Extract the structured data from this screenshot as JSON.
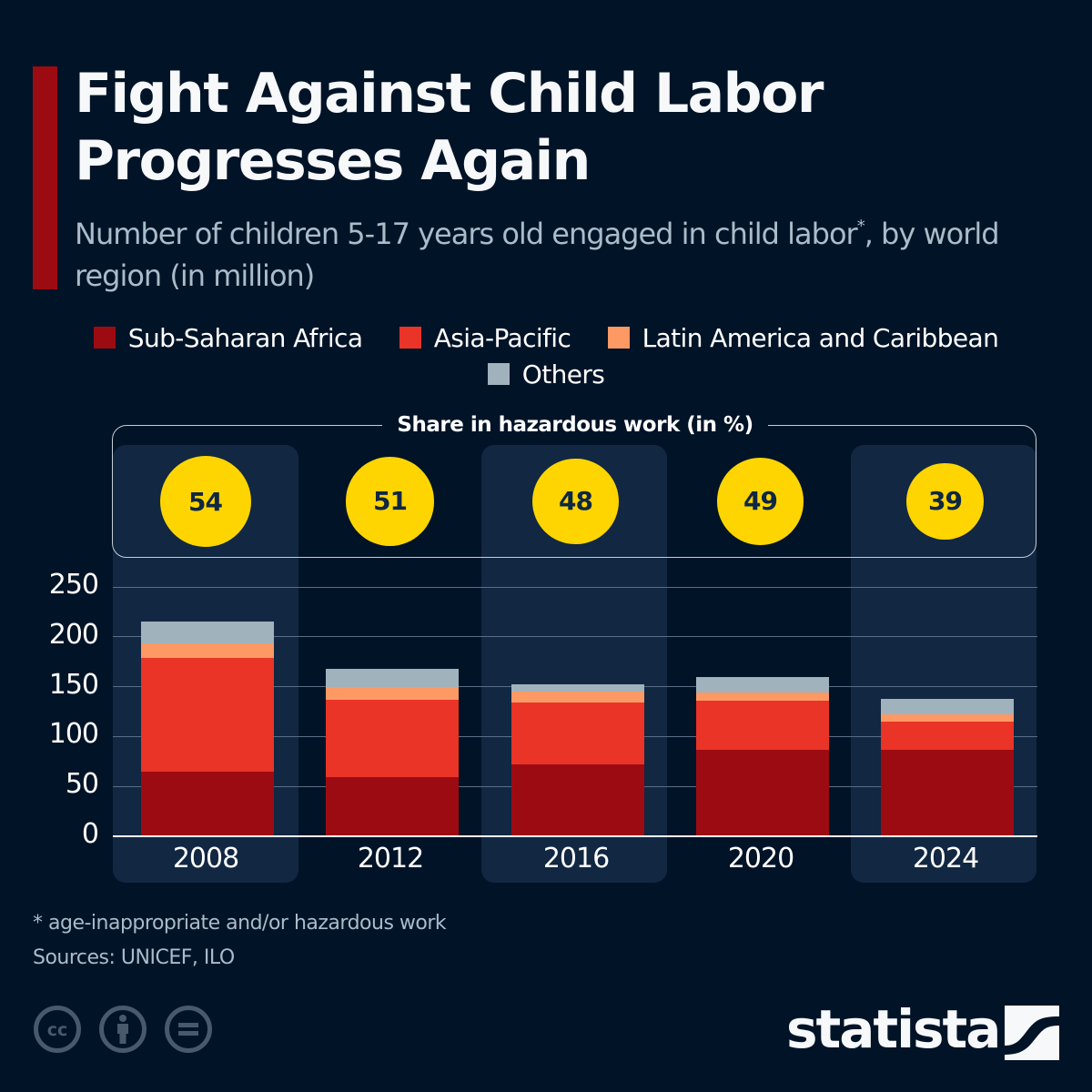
{
  "header": {
    "title": "Fight Against Child Labor Progresses Again",
    "subtitle_main": "Number of children 5-17 years old engaged in child labor",
    "subtitle_sup": "*",
    "subtitle_tail": ", by world region (in million)"
  },
  "colors": {
    "background": "#011327",
    "accent": "#9d0b12",
    "circle": "#fed500",
    "column_highlight": "#112742"
  },
  "legend": [
    {
      "label": "Sub-Saharan Africa",
      "color": "#9d0b12"
    },
    {
      "label": "Asia-Pacific",
      "color": "#e93427"
    },
    {
      "label": "Latin America and Caribbean",
      "color": "#fd9964"
    },
    {
      "label": "Others",
      "color": "#a0b3bd"
    }
  ],
  "chart_data": {
    "type": "bar",
    "stacked": true,
    "title": "Fight Against Child Labor Progresses Again",
    "subtitle": "Number of children 5-17 years old engaged in child labor*, by world region (in million)",
    "xlabel": "",
    "ylabel": "",
    "categories": [
      "2008",
      "2012",
      "2016",
      "2020",
      "2024"
    ],
    "series": [
      {
        "name": "Sub-Saharan Africa",
        "color": "#9d0b12",
        "values": [
          65,
          59,
          72,
          87,
          87
        ]
      },
      {
        "name": "Asia-Pacific",
        "color": "#e93427",
        "values": [
          114,
          78,
          62,
          49,
          28
        ]
      },
      {
        "name": "Latin America and Caribbean",
        "color": "#fd9964",
        "values": [
          14,
          13,
          11,
          8,
          7
        ]
      },
      {
        "name": "Others",
        "color": "#a0b3bd",
        "values": [
          22,
          18,
          7,
          16,
          16
        ]
      }
    ],
    "ylim": [
      0,
      250
    ],
    "yticks": [
      0,
      50,
      100,
      150,
      200,
      250
    ],
    "grid": true,
    "legend_position": "top-center",
    "annotation": {
      "title": "Share in hazardous work (in %)",
      "values": [
        54,
        51,
        48,
        49,
        39
      ]
    }
  },
  "footer": {
    "footnote": "* age-inappropriate and/or hazardous work",
    "sources": "Sources: UNICEF, ILO",
    "license_icons": [
      "cc-icon",
      "attribution-icon",
      "no-derivatives-icon"
    ],
    "brand": "statista"
  }
}
